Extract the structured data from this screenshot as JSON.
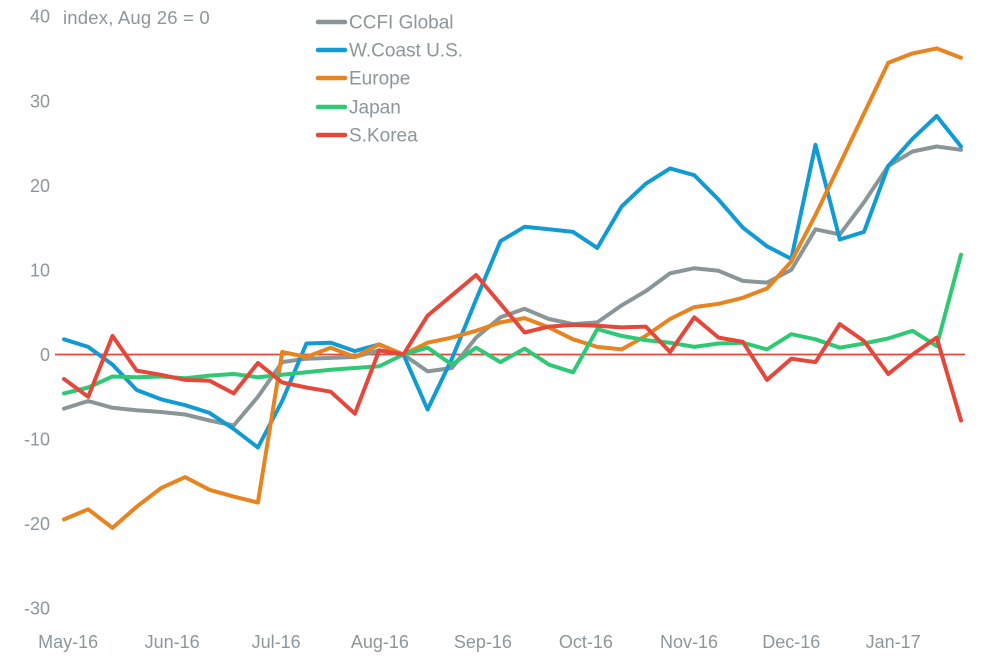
{
  "chart_data": {
    "type": "line",
    "title": "index, Aug 26 = 0",
    "frequency": "weekly",
    "points_per_series": 38,
    "grid": false,
    "legend_position": "top-inside-left",
    "text_color": "#8d969c",
    "background": "#ffffff",
    "y_axis": {
      "ticks": [
        40,
        30,
        20,
        10,
        0,
        -10,
        -20,
        -30
      ],
      "range": [
        -30,
        40
      ]
    },
    "x_axis": {
      "tick_labels": [
        "May-16",
        "Jun-16",
        "Jul-16",
        "Aug-16",
        "Sep-16",
        "Oct-16",
        "Nov-16",
        "Dec-16",
        "Jan-17"
      ],
      "tick_week_positions": [
        0.17,
        4.46,
        8.75,
        13.03,
        17.28,
        21.53,
        25.78,
        30.0,
        34.2
      ]
    },
    "zero_line": {
      "value": 0,
      "color": "#e5483b"
    },
    "series": [
      {
        "name": "CCFI Global",
        "color": "#8a9598",
        "values": [
          -6.4,
          -5.5,
          -6.3,
          -6.6,
          -6.8,
          -7.1,
          -7.8,
          -8.4,
          -5.0,
          -0.9,
          -0.5,
          -0.4,
          -0.3,
          0.5,
          0,
          -2.0,
          -1.6,
          2.0,
          4.4,
          5.4,
          4.2,
          3.6,
          3.8,
          5.8,
          7.5,
          9.6,
          10.2,
          9.9,
          8.7,
          8.5,
          10.0,
          14.8,
          14.2,
          18.0,
          22.3,
          24.0,
          24.6,
          24.2
        ]
      },
      {
        "name": "W.Coast U.S.",
        "color": "#119bd5",
        "values": [
          1.8,
          0.9,
          -1.2,
          -4.2,
          -5.3,
          -6.0,
          -6.9,
          -8.8,
          -11.0,
          -5.5,
          1.3,
          1.4,
          0.4,
          1.2,
          0,
          -6.5,
          -0.5,
          6.5,
          13.4,
          15.1,
          14.8,
          14.5,
          12.6,
          17.5,
          20.2,
          22.0,
          21.2,
          18.3,
          15.0,
          12.8,
          11.3,
          24.8,
          13.6,
          14.5,
          22.3,
          25.5,
          28.2,
          24.6
        ]
      },
      {
        "name": "Europe",
        "color": "#e8841f",
        "values": [
          -19.5,
          -18.3,
          -20.5,
          -18.0,
          -15.8,
          -14.5,
          -16.0,
          -16.8,
          -17.5,
          0.3,
          -0.3,
          0.8,
          -0.3,
          1.2,
          0,
          1.4,
          2.0,
          2.8,
          3.8,
          4.3,
          3.2,
          1.8,
          0.9,
          0.6,
          2.2,
          4.2,
          5.6,
          6.0,
          6.7,
          7.8,
          11.0,
          16.5,
          22.5,
          28.5,
          34.5,
          35.6,
          36.2,
          35.1
        ]
      },
      {
        "name": "Japan",
        "color": "#2fc874",
        "values": [
          -4.6,
          -3.9,
          -2.6,
          -2.7,
          -2.6,
          -2.8,
          -2.5,
          -2.3,
          -2.7,
          -2.4,
          -2.1,
          -1.8,
          -1.6,
          -1.4,
          0,
          0.8,
          -1.2,
          0.8,
          -0.9,
          0.7,
          -1.2,
          -2.1,
          3.0,
          2.2,
          1.7,
          1.4,
          0.9,
          1.3,
          1.4,
          0.6,
          2.4,
          1.8,
          0.8,
          1.3,
          1.9,
          2.8,
          1.0,
          11.8
        ]
      },
      {
        "name": "S.Korea",
        "color": "#e5483b",
        "values": [
          -2.9,
          -5.0,
          2.2,
          -1.9,
          -2.4,
          -3.0,
          -3.1,
          -4.6,
          -1.0,
          -3.3,
          -3.9,
          -4.4,
          -7.0,
          0.5,
          0,
          4.6,
          7.0,
          9.4,
          6.0,
          2.6,
          3.3,
          3.5,
          3.4,
          3.2,
          3.3,
          0.3,
          4.4,
          2.0,
          1.5,
          -3.0,
          -0.5,
          -0.9,
          3.6,
          1.6,
          -2.3,
          0,
          2.0,
          -7.8
        ]
      }
    ]
  }
}
